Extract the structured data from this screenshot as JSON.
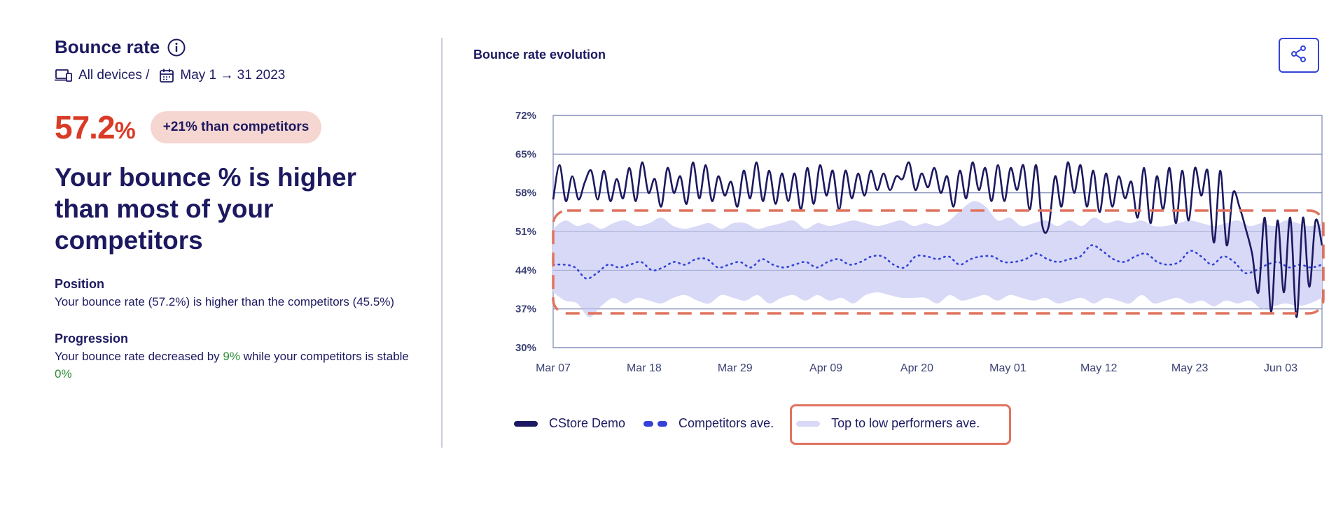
{
  "header": {
    "title": "Bounce rate",
    "devices": "All devices /",
    "date_range": "May 1 → 31 2023"
  },
  "metric": {
    "value": "57.2",
    "unit": "%",
    "badge": "+21% than competitors",
    "headline": "Your bounce % is higher than most of your competitors"
  },
  "position": {
    "title": "Position",
    "text": "Your bounce rate (57.2%) is higher than the competitors (45.5%)"
  },
  "progression": {
    "title": "Progression",
    "text_before": "Your bounce rate decreased by ",
    "value1": "9%",
    "text_middle": " while your competitors is stable ",
    "value2": "0%"
  },
  "chart": {
    "title": "Bounce rate evolution"
  },
  "colors": {
    "accent_red": "#d93b26",
    "navy": "#1c1960",
    "blue": "#3442d8",
    "band": "#d7d9f7",
    "highlight": "#e0735f",
    "green": "#2e8b3a"
  },
  "chart_data": {
    "type": "line",
    "title": "Bounce rate evolution",
    "x_ticks": [
      "Mar 07",
      "Mar 18",
      "Mar 29",
      "Apr 09",
      "Apr 20",
      "May 01",
      "May 12",
      "May 23",
      "Jun 03"
    ],
    "y_ticks": [
      "30%",
      "37%",
      "44%",
      "51%",
      "58%",
      "65%",
      "72%"
    ],
    "ylim": [
      30,
      72
    ],
    "grid": "horizontal",
    "legend_position": "bottom",
    "series": [
      {
        "name": "CStore Demo",
        "style": "solid",
        "color": "#1c1960",
        "values": [
          56.8,
          63.0,
          56.5,
          61.0,
          56.8,
          60.0,
          62.0,
          56.8,
          62.0,
          56.5,
          60.5,
          57.0,
          62.5,
          56.5,
          63.5,
          58.0,
          60.5,
          55.5,
          62.5,
          58.0,
          61.0,
          56.0,
          63.5,
          57.0,
          63.0,
          56.5,
          61.0,
          57.5,
          60.0,
          55.5,
          62.0,
          57.0,
          63.5,
          56.5,
          62.0,
          56.0,
          61.5,
          56.5,
          61.5,
          55.0,
          62.5,
          56.0,
          63.0,
          57.5,
          62.0,
          55.0,
          62.0,
          57.0,
          61.5,
          57.5,
          62.0,
          58.5,
          61.5,
          58.5,
          61.0,
          60.5,
          63.5,
          58.5,
          61.5,
          59.0,
          62.5,
          58.0,
          61.0,
          55.5,
          62.0,
          57.0,
          63.5,
          58.5,
          62.5,
          56.5,
          63.0,
          56.5,
          62.5,
          58.5,
          63.0,
          55.0,
          63.0,
          52.0,
          52.0,
          61.0,
          55.5,
          63.5,
          58.0,
          63.0,
          55.5,
          62.0,
          54.5,
          61.5,
          55.5,
          61.0,
          57.0,
          60.0,
          53.5,
          62.5,
          52.5,
          61.0,
          55.0,
          62.5,
          52.5,
          62.0,
          53.0,
          62.5,
          57.5,
          62.0,
          49.0,
          62.0,
          48.5,
          58.0,
          55.5,
          51.5,
          47.0,
          40.0,
          53.5,
          36.5,
          53.0,
          40.0,
          53.5,
          35.5,
          53.5,
          41.0,
          53.0,
          48.5
        ]
      },
      {
        "name": "Competitors ave.",
        "style": "dotted",
        "color": "#3442d8",
        "values": [
          45.0,
          45.0,
          44.5,
          42.5,
          43.5,
          45.0,
          44.5,
          45.0,
          45.5,
          44.0,
          44.5,
          45.5,
          45.0,
          46.0,
          46.0,
          44.5,
          45.0,
          45.5,
          44.5,
          46.0,
          45.0,
          44.5,
          45.0,
          45.5,
          44.5,
          45.5,
          46.0,
          45.0,
          45.5,
          46.5,
          46.5,
          45.0,
          44.5,
          46.5,
          46.5,
          46.0,
          46.5,
          45.0,
          46.0,
          46.5,
          46.5,
          45.5,
          45.5,
          46.0,
          47.0,
          46.0,
          45.5,
          46.0,
          46.5,
          48.5,
          47.5,
          46.0,
          45.5,
          46.5,
          47.0,
          45.5,
          45.0,
          45.5,
          47.5,
          46.5,
          45.0,
          46.5,
          45.5,
          43.5,
          44.0,
          45.0,
          45.5,
          44.5,
          45.0,
          44.5,
          45.0
        ]
      },
      {
        "name": "Top to low performers ave.",
        "style": "band",
        "color": "#d7d9f7",
        "upper": [
          51.5,
          53.0,
          52.0,
          52.5,
          51.5,
          52.5,
          53.0,
          52.0,
          52.5,
          53.5,
          52.0,
          51.5,
          52.0,
          52.5,
          51.5,
          52.5,
          52.5,
          51.5,
          52.0,
          52.5,
          53.0,
          51.5,
          52.5,
          52.0,
          52.5,
          53.0,
          52.5,
          52.0,
          52.5,
          53.0,
          52.0,
          52.5,
          52.0,
          53.0,
          55.0,
          56.5,
          55.5,
          53.0,
          53.5,
          52.0,
          52.5,
          53.0,
          52.0,
          53.0,
          52.0,
          53.5,
          52.5,
          53.0,
          52.5,
          53.0,
          52.0,
          52.0,
          52.5,
          53.0,
          52.5,
          52.0,
          52.5,
          53.0,
          52.0,
          52.5,
          52.0,
          53.0,
          52.5,
          52.0,
          52.5
        ],
        "lower": [
          40.0,
          38.5,
          38.0,
          35.5,
          37.5,
          39.0,
          38.0,
          39.0,
          38.5,
          38.0,
          39.0,
          39.5,
          38.5,
          38.0,
          39.5,
          39.0,
          38.5,
          39.5,
          38.0,
          39.0,
          39.5,
          38.5,
          39.5,
          38.5,
          39.0,
          38.0,
          39.5,
          40.0,
          39.5,
          39.0,
          39.0,
          39.0,
          38.0,
          39.5,
          38.5,
          39.0,
          39.5,
          38.5,
          39.5,
          39.0,
          38.5,
          39.0,
          38.0,
          38.5,
          39.0,
          38.0,
          39.0,
          38.5,
          38.0,
          39.5,
          38.0,
          38.5,
          39.0,
          38.0,
          38.5,
          37.5,
          38.5,
          38.0,
          38.5,
          37.0,
          37.5,
          38.0,
          37.5,
          38.0,
          39.0
        ]
      }
    ]
  },
  "legend": {
    "items": [
      "CStore Demo",
      "Competitors ave.",
      "Top to low performers ave."
    ]
  }
}
